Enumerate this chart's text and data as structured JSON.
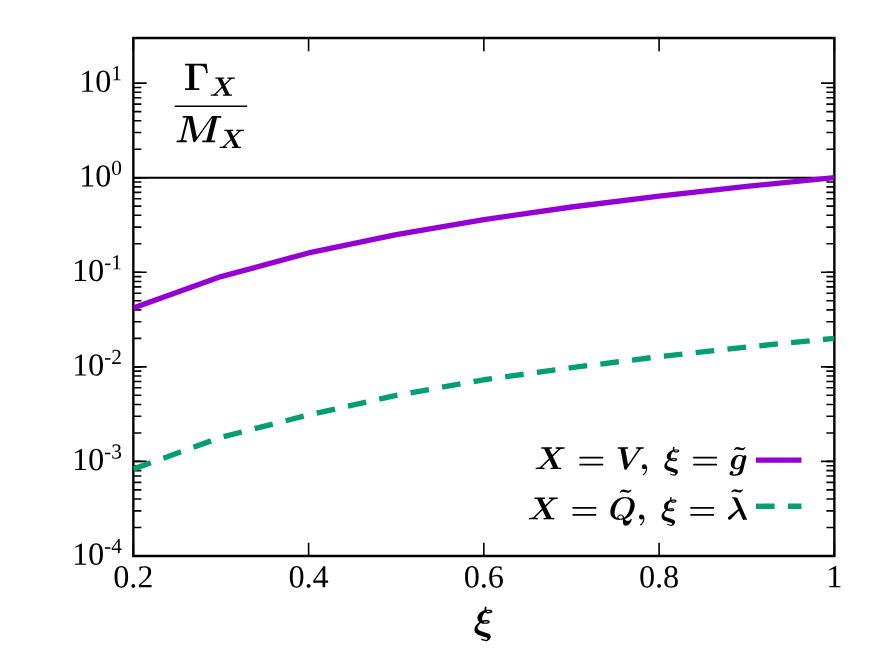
{
  "chart_data": {
    "type": "line",
    "xlabel": "\\boldsymbol{\\xi}",
    "ylabel": "\\frac{\\boldsymbol{\\Gamma_X}}{\\boldsymbol{M_X}}",
    "log": "y",
    "xlim": [
      0.2,
      1
    ],
    "ylim": [
      0.0001,
      30
    ],
    "xticks": [
      0.2,
      0.4,
      0.6,
      0.8,
      1
    ],
    "yticks": [
      {
        "value": 0.0001,
        "label": "10$^{-4}$"
      },
      {
        "value": 0.001,
        "label": "10$^{-3}$"
      },
      {
        "value": 0.01,
        "label": "10$^{-2}$"
      },
      {
        "value": 0.1,
        "label": "10$^{-1}$"
      },
      {
        "value": 1,
        "label": "10$^{0}$"
      },
      {
        "value": 10,
        "label": "10$^{1}$"
      }
    ],
    "legend": "bottom right",
    "grid": false,
    "ref_lines": [
      {
        "axis": "y",
        "value": 1,
        "color": "#000000"
      }
    ],
    "series": [
      {
        "name": "\\boldsymbol{X = V,\\ \\xi = \\tilde{g}}",
        "color": "#9400d3",
        "line_style": "solid",
        "x": [
          0.2,
          0.3,
          0.4,
          0.5,
          0.6,
          0.7,
          0.8,
          0.9,
          1.0
        ],
        "values": [
          0.042,
          0.09,
          0.16,
          0.25,
          0.36,
          0.49,
          0.64,
          0.81,
          1.0
        ]
      },
      {
        "name": "\\boldsymbol{X = \\tilde{Q},\\ \\xi = \\tilde{\\lambda}}",
        "color": "#009e73",
        "line_style": "dashed",
        "x": [
          0.2,
          0.3,
          0.4,
          0.5,
          0.6,
          0.7,
          0.8,
          0.9,
          1.0
        ],
        "values": [
          0.00083,
          0.0018,
          0.0031,
          0.005,
          0.0073,
          0.0098,
          0.0128,
          0.0162,
          0.02
        ]
      }
    ]
  }
}
